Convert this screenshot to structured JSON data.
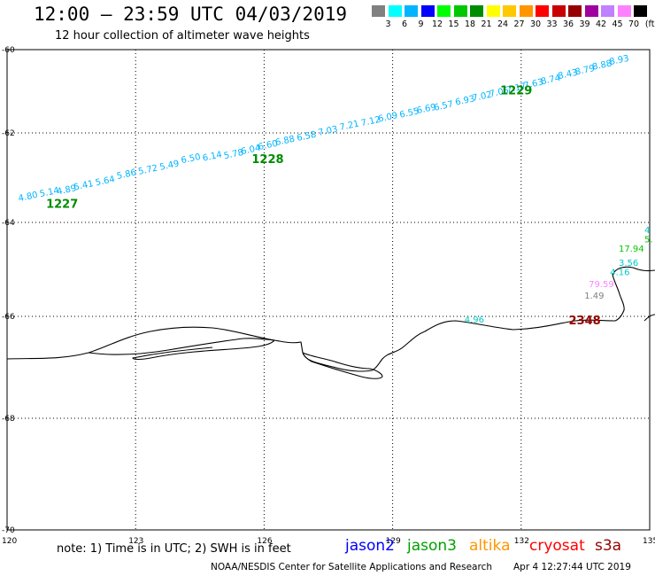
{
  "header": {
    "title": "12:00 – 23:59 UTC 04/03/2019",
    "subtitle": "12 hour collection of altimeter wave heights"
  },
  "colorbar": {
    "unit_label": "(ft)",
    "colors": [
      "#808080",
      "#00ffff",
      "#00b4ff",
      "#0000ff",
      "#00ff00",
      "#00c800",
      "#008c00",
      "#ffff00",
      "#ffc800",
      "#ff9600",
      "#ff0000",
      "#c80000",
      "#960000",
      "#a000a0",
      "#c080ff",
      "#ff80ff",
      "#000000"
    ],
    "labels": [
      "3",
      "6",
      "9",
      "12",
      "15",
      "18",
      "21",
      "24",
      "27",
      "30",
      "33",
      "36",
      "39",
      "42",
      "45",
      "70"
    ]
  },
  "axes": {
    "lat_labels": [
      "-60",
      "-62",
      "-64",
      "-66",
      "-68",
      "-70"
    ],
    "lon_labels": [
      "120",
      "123",
      "126",
      "129",
      "132",
      "135"
    ]
  },
  "chart_data": {
    "type": "scatter",
    "xlabel": "",
    "ylabel": "",
    "xlim": [
      120,
      135
    ],
    "ylim": [
      -70,
      -60
    ],
    "grid": true,
    "track_points": [
      {
        "lon": 120.4,
        "lat": -63.45,
        "value": "4.80"
      },
      {
        "lon": 120.9,
        "lat": -63.35,
        "value": "5.14"
      },
      {
        "lon": 121.3,
        "lat": -63.3,
        "value": "4.89"
      },
      {
        "lon": 121.7,
        "lat": -63.2,
        "value": "5.41"
      },
      {
        "lon": 122.2,
        "lat": -63.1,
        "value": "5.64"
      },
      {
        "lon": 122.7,
        "lat": -62.95,
        "value": "5.86"
      },
      {
        "lon": 123.2,
        "lat": -62.85,
        "value": "5.72"
      },
      {
        "lon": 123.7,
        "lat": -62.75,
        "value": "5.49"
      },
      {
        "lon": 124.2,
        "lat": -62.6,
        "value": "6.50"
      },
      {
        "lon": 124.7,
        "lat": -62.55,
        "value": "6.14"
      },
      {
        "lon": 125.2,
        "lat": -62.5,
        "value": "5.78"
      },
      {
        "lon": 125.6,
        "lat": -62.4,
        "value": "6.04"
      },
      {
        "lon": 126.0,
        "lat": -62.3,
        "value": "6.60"
      },
      {
        "lon": 126.4,
        "lat": -62.2,
        "value": "6.88"
      },
      {
        "lon": 126.9,
        "lat": -62.1,
        "value": "6.58"
      },
      {
        "lon": 127.4,
        "lat": -61.98,
        "value": "7.03"
      },
      {
        "lon": 127.9,
        "lat": -61.85,
        "value": "7.21"
      },
      {
        "lon": 128.4,
        "lat": -61.75,
        "value": "7.12"
      },
      {
        "lon": 128.8,
        "lat": -61.65,
        "value": "6.09"
      },
      {
        "lon": 129.3,
        "lat": -61.55,
        "value": "6.55"
      },
      {
        "lon": 129.7,
        "lat": -61.45,
        "value": "6.69"
      },
      {
        "lon": 130.1,
        "lat": -61.38,
        "value": "6.57"
      },
      {
        "lon": 130.6,
        "lat": -61.25,
        "value": "6.93"
      },
      {
        "lon": 131.0,
        "lat": -61.15,
        "value": "7.02"
      },
      {
        "lon": 131.4,
        "lat": -61.05,
        "value": "7.05"
      },
      {
        "lon": 131.8,
        "lat": -60.95,
        "value": "7.17"
      },
      {
        "lon": 132.2,
        "lat": -60.85,
        "value": "7.63"
      },
      {
        "lon": 132.6,
        "lat": -60.75,
        "value": "8.74"
      },
      {
        "lon": 133.0,
        "lat": -60.62,
        "value": "8.43"
      },
      {
        "lon": 133.4,
        "lat": -60.52,
        "value": "8.79"
      },
      {
        "lon": 133.8,
        "lat": -60.4,
        "value": "8.88"
      },
      {
        "lon": 134.2,
        "lat": -60.28,
        "value": "8.93"
      }
    ],
    "track_color": "#00b4ff",
    "time_labels": [
      {
        "lon": 121.2,
        "lat": -63.55,
        "text": "1227",
        "color": "#008c00"
      },
      {
        "lon": 126.0,
        "lat": -62.55,
        "text": "1228",
        "color": "#008c00"
      },
      {
        "lon": 131.8,
        "lat": -60.95,
        "text": "1229",
        "color": "#008c00"
      },
      {
        "lon": 133.4,
        "lat": -66.05,
        "text": "2348",
        "color": "#960000"
      }
    ],
    "coastal_points": [
      {
        "lon": 130.8,
        "lat": -66.05,
        "value": "4.96",
        "color": "#00c8c8"
      },
      {
        "lon": 134.4,
        "lat": -64.55,
        "value": "17.94",
        "color": "#00c800"
      },
      {
        "lon": 134.4,
        "lat": -64.85,
        "value": "3.56",
        "color": "#00c8c8"
      },
      {
        "lon": 134.2,
        "lat": -65.05,
        "value": "4.16",
        "color": "#00c8c8"
      },
      {
        "lon": 133.7,
        "lat": -65.3,
        "value": "79.59",
        "color": "#ff80ff"
      },
      {
        "lon": 133.6,
        "lat": -65.55,
        "value": "1.49",
        "color": "#808080"
      },
      {
        "lon": 135.0,
        "lat": -64.35,
        "value": "5.",
        "color": "#00c800"
      },
      {
        "lon": 135.0,
        "lat": -64.15,
        "value": "4",
        "color": "#00c8c8"
      }
    ]
  },
  "footer": {
    "note": "note:  1) Time is in UTC;  2) SWH is in feet",
    "satellites": [
      {
        "name": "jason2",
        "color": "#0000ff"
      },
      {
        "name": "jason3",
        "color": "#00a000"
      },
      {
        "name": "altika",
        "color": "#ff9600"
      },
      {
        "name": "cryosat",
        "color": "#ff0000"
      },
      {
        "name": "s3a",
        "color": "#960000"
      }
    ],
    "credit": "NOAA/NESDIS Center for Satellite Applications and Research",
    "timestamp": "Apr  4 12:27:44 UTC 2019"
  }
}
